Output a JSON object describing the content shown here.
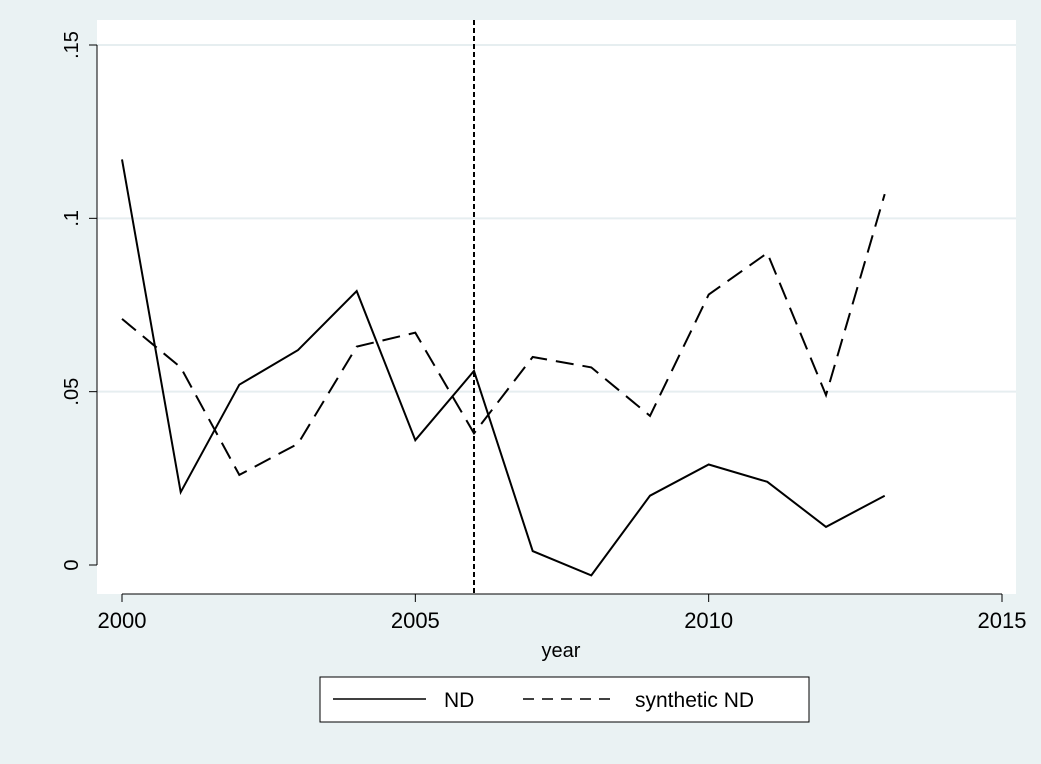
{
  "chart_data": {
    "type": "line",
    "xlabel": "year",
    "ylabel": "",
    "title": "",
    "xlim": [
      2000,
      2015
    ],
    "ylim": [
      0,
      0.15
    ],
    "xticks": [
      2000,
      2005,
      2010,
      2015
    ],
    "xtick_labels": [
      "2000",
      "2005",
      "2010",
      "2015"
    ],
    "yticks": [
      0,
      0.05,
      0.1,
      0.15
    ],
    "ytick_labels": [
      "0",
      ".05",
      ".1",
      ".15"
    ],
    "grid": "horizontal",
    "legend_position": "bottom",
    "vertical_line": {
      "x": 2006,
      "style": "dashed"
    },
    "x": [
      2000,
      2001,
      2002,
      2003,
      2004,
      2005,
      2006,
      2007,
      2008,
      2009,
      2010,
      2011,
      2012,
      2013
    ],
    "series": [
      {
        "name": "ND",
        "style": "solid",
        "color": "#000000",
        "values": [
          0.117,
          0.021,
          0.052,
          0.062,
          0.079,
          0.036,
          0.056,
          0.004,
          -0.003,
          0.02,
          0.029,
          0.024,
          0.011,
          0.02
        ]
      },
      {
        "name": "synthetic ND",
        "style": "dashed",
        "color": "#000000",
        "values": [
          0.071,
          0.057,
          0.026,
          0.035,
          0.063,
          0.067,
          0.038,
          0.06,
          0.057,
          0.043,
          0.078,
          0.09,
          0.049,
          0.107
        ]
      }
    ]
  }
}
